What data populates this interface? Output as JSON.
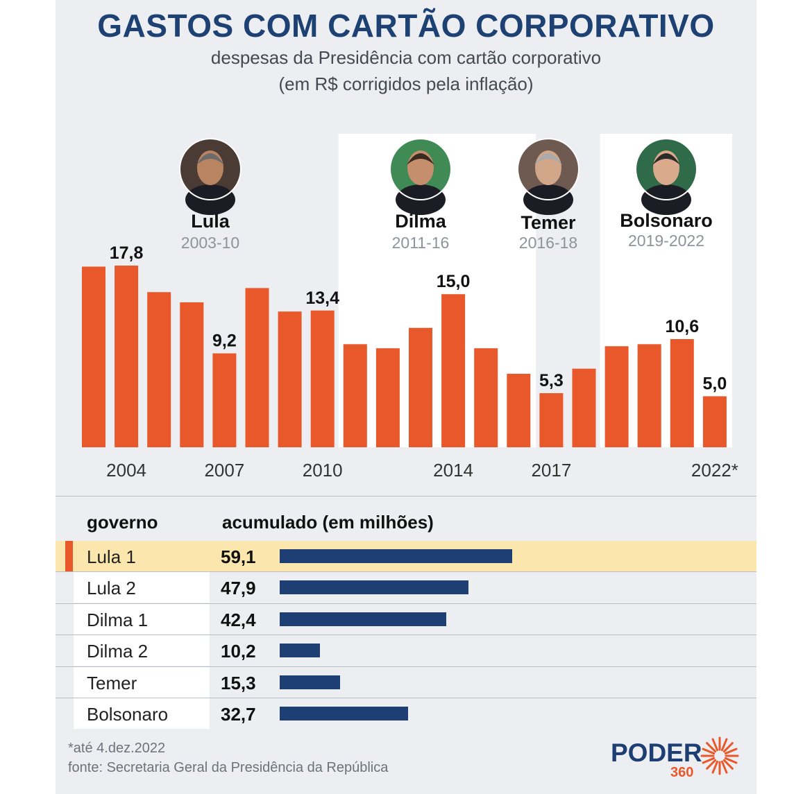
{
  "title": "GASTOS COM CARTÃO CORPORATIVO",
  "subtitle_line1": "despesas da Presidência com cartão corporativo",
  "subtitle_line2": "(em R$ corrigidos pela inflação)",
  "colors": {
    "bar": "#e8582a",
    "hbar": "#1e3f73",
    "title": "#1d4173",
    "highlight_row": "#fbe7ad",
    "background": "#eceef1",
    "panel": "#ffffff"
  },
  "presidents": [
    {
      "name": "Lula",
      "years": "2003-10",
      "icon": "lula-portrait-icon"
    },
    {
      "name": "Dilma",
      "years": "2011-16",
      "icon": "dilma-portrait-icon"
    },
    {
      "name": "Temer",
      "years": "2016-18",
      "icon": "temer-portrait-icon"
    },
    {
      "name": "Bolsonaro",
      "years": "2019-2022",
      "icon": "bolsonaro-portrait-icon"
    }
  ],
  "chart_data": [
    {
      "type": "bar",
      "title": "GASTOS COM CARTÃO CORPORATIVO",
      "x": [
        2003,
        2004,
        2005,
        2006,
        2007,
        2008,
        2009,
        2010,
        2011,
        2012,
        2013,
        2014,
        2015,
        2016,
        2017,
        2018,
        2019,
        2020,
        2021,
        2022
      ],
      "x_tick_labels": [
        {
          "x": 2004,
          "label": "2004"
        },
        {
          "x": 2007,
          "label": "2007"
        },
        {
          "x": 2010,
          "label": "2010"
        },
        {
          "x": 2014,
          "label": "2014"
        },
        {
          "x": 2017,
          "label": "2017"
        },
        {
          "x": 2022,
          "label": "2022*"
        }
      ],
      "values": [
        17.7,
        17.8,
        15.2,
        14.2,
        9.2,
        15.6,
        13.3,
        13.4,
        10.1,
        9.7,
        11.7,
        15.0,
        9.7,
        7.2,
        5.3,
        7.7,
        9.9,
        10.1,
        10.6,
        5.0
      ],
      "data_labels": [
        {
          "x": 2004,
          "label": "17,8"
        },
        {
          "x": 2007,
          "label": "9,2"
        },
        {
          "x": 2010,
          "label": "13,4"
        },
        {
          "x": 2014,
          "label": "15,0"
        },
        {
          "x": 2017,
          "label": "5,3"
        },
        {
          "x": 2021,
          "label": "10,6"
        },
        {
          "x": 2022,
          "label": "5,0"
        }
      ],
      "ylim": [
        0,
        18
      ],
      "grid": false,
      "highlighted_periods": [
        [
          2011,
          2016
        ],
        [
          2019,
          2022
        ]
      ]
    },
    {
      "type": "bar",
      "orientation": "horizontal",
      "categories": [
        "Lula 1",
        "Lula 2",
        "Dilma 1",
        "Dilma 2",
        "Temer",
        "Bolsonaro"
      ],
      "values": [
        59.1,
        47.9,
        42.4,
        10.2,
        15.3,
        32.7
      ],
      "value_labels": [
        "59,1",
        "47,9",
        "42,4",
        "10,2",
        "15,3",
        "32,7"
      ],
      "highlighted": "Lula 1"
    }
  ],
  "table": {
    "col1_header": "governo",
    "col2_header": "acumulado (em milhões)"
  },
  "footnote": "*até 4.dez.2022",
  "source": "fonte: Secretaria Geral da Presidência da República",
  "logo": {
    "word": "PODER",
    "number": "360"
  }
}
